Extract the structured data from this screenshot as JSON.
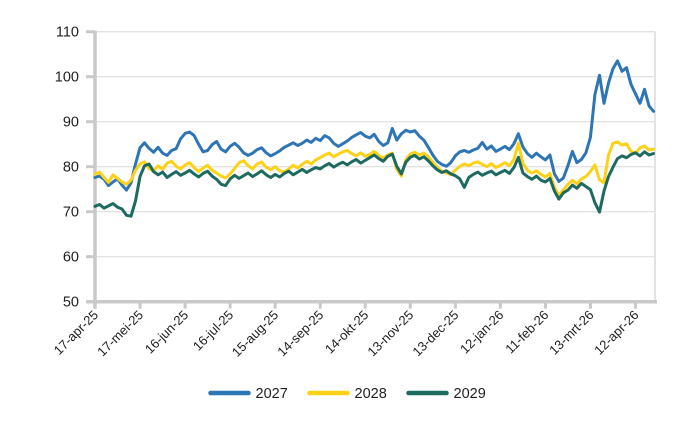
{
  "chart_data": {
    "type": "line",
    "title": "",
    "xlabel": "",
    "ylabel": "",
    "grid": "horizontal",
    "legend_position": "bottom",
    "ylim": [
      50,
      110
    ],
    "y_ticks": [
      50,
      60,
      70,
      80,
      90,
      100,
      110
    ],
    "x_domain_days": [
      0,
      373
    ],
    "x_tick_days": [
      0,
      30,
      60,
      90,
      120,
      150,
      180,
      210,
      240,
      270,
      300,
      330,
      360
    ],
    "x_tick_labels": [
      "17-apr-25",
      "17-mei-25",
      "16-jun-25",
      "16-jul-25",
      "15-aug-25",
      "14-sep-25",
      "14-okt-25",
      "13-nov-25",
      "13-dec-25",
      "12-jan-26",
      "11-feb-26",
      "13-mrt-26",
      "12-apr-26"
    ],
    "sample_step_days": 3,
    "series": [
      {
        "name": "2027",
        "color": "#2e75b6",
        "values": [
          77.6,
          77.9,
          77.2,
          75.8,
          76.6,
          77.3,
          75.9,
          74.8,
          76.4,
          80.6,
          84.2,
          85.3,
          84.1,
          83.2,
          84.3,
          83.0,
          82.5,
          83.6,
          84.0,
          86.2,
          87.4,
          87.7,
          86.9,
          85.0,
          83.3,
          83.6,
          84.9,
          85.6,
          83.9,
          83.3,
          84.5,
          85.2,
          84.3,
          83.1,
          82.5,
          83.0,
          83.8,
          84.2,
          83.1,
          82.4,
          82.9,
          83.5,
          84.3,
          84.8,
          85.3,
          84.7,
          85.2,
          85.9,
          85.4,
          86.3,
          85.8,
          86.9,
          86.4,
          85.2,
          84.5,
          85.1,
          85.7,
          86.5,
          87.1,
          87.6,
          86.8,
          86.4,
          87.2,
          85.6,
          84.7,
          85.3,
          88.5,
          85.9,
          87.3,
          88.1,
          87.7,
          88.0,
          86.8,
          85.9,
          84.3,
          82.6,
          81.2,
          80.5,
          80.1,
          80.9,
          82.4,
          83.3,
          83.6,
          83.2,
          83.7,
          84.1,
          85.4,
          83.9,
          84.6,
          83.4,
          83.9,
          84.5,
          83.8,
          85.1,
          87.3,
          84.4,
          82.9,
          82.1,
          83.0,
          82.2,
          81.5,
          82.6,
          78.4,
          76.7,
          77.5,
          80.2,
          83.4,
          80.9,
          81.6,
          83.1,
          86.5,
          96.0,
          100.3,
          94.1,
          98.6,
          101.8,
          103.5,
          101.2,
          102.0,
          98.3,
          96.2,
          94.1,
          97.2,
          93.5,
          92.3
        ]
      },
      {
        "name": "2028",
        "color": "#fcd116",
        "values": [
          78.3,
          78.8,
          77.6,
          76.5,
          78.2,
          77.4,
          76.6,
          76.1,
          77.0,
          79.2,
          80.6,
          81.1,
          79.6,
          79.0,
          80.2,
          79.4,
          80.8,
          81.2,
          80.1,
          79.5,
          80.4,
          80.9,
          79.8,
          78.9,
          79.7,
          80.3,
          79.2,
          78.6,
          77.9,
          77.5,
          78.4,
          79.6,
          80.9,
          81.3,
          80.2,
          79.5,
          80.6,
          81.0,
          79.9,
          79.3,
          80.0,
          79.1,
          78.8,
          79.5,
          80.3,
          79.7,
          80.5,
          81.2,
          80.6,
          81.5,
          82.0,
          82.6,
          83.0,
          82.2,
          82.8,
          83.3,
          83.6,
          82.9,
          82.4,
          83.1,
          82.3,
          82.7,
          83.4,
          82.5,
          81.9,
          82.6,
          83.0,
          79.4,
          77.9,
          81.5,
          82.8,
          83.2,
          82.6,
          83.0,
          82.2,
          81.0,
          79.8,
          79.0,
          78.6,
          78.3,
          79.2,
          80.1,
          80.6,
          80.2,
          80.8,
          81.1,
          80.5,
          80.0,
          80.7,
          79.8,
          80.3,
          80.9,
          80.2,
          81.6,
          85.2,
          80.7,
          79.2,
          78.6,
          79.1,
          78.3,
          77.7,
          78.5,
          75.4,
          73.6,
          74.9,
          76.1,
          77.0,
          76.2,
          77.3,
          77.8,
          78.9,
          80.4,
          77.1,
          76.4,
          82.6,
          85.2,
          85.5,
          84.8,
          85.1,
          83.4,
          83.0,
          84.2,
          84.6,
          83.7,
          83.9
        ]
      },
      {
        "name": "2029",
        "color": "#1d6a60",
        "values": [
          71.2,
          71.6,
          70.8,
          71.3,
          71.8,
          71.0,
          70.6,
          69.2,
          69.0,
          72.4,
          77.8,
          80.2,
          80.6,
          78.9,
          78.2,
          78.8,
          77.6,
          78.3,
          78.9,
          78.1,
          78.6,
          79.2,
          78.4,
          77.7,
          78.5,
          79.0,
          77.9,
          77.2,
          76.1,
          75.8,
          77.3,
          78.1,
          77.4,
          78.0,
          78.6,
          77.8,
          78.4,
          79.1,
          78.2,
          77.6,
          78.3,
          77.7,
          78.5,
          79.0,
          78.2,
          78.8,
          79.4,
          78.7,
          79.3,
          79.8,
          79.5,
          80.2,
          80.7,
          79.9,
          80.5,
          81.0,
          80.4,
          81.1,
          81.6,
          80.8,
          81.4,
          82.0,
          82.6,
          81.8,
          81.2,
          82.3,
          82.8,
          80.1,
          78.4,
          81.0,
          82.1,
          82.5,
          81.7,
          82.2,
          81.3,
          80.2,
          79.3,
          78.7,
          79.1,
          78.4,
          78.0,
          77.3,
          75.4,
          77.6,
          78.3,
          78.8,
          78.1,
          78.6,
          79.0,
          78.2,
          78.7,
          79.2,
          78.5,
          79.8,
          82.1,
          78.6,
          77.8,
          77.2,
          77.9,
          77.0,
          76.6,
          77.4,
          74.6,
          72.8,
          74.2,
          74.8,
          75.9,
          75.2,
          76.3,
          75.6,
          74.9,
          72.0,
          69.9,
          74.6,
          77.8,
          79.9,
          81.8,
          82.4,
          82.0,
          82.7,
          83.1,
          82.4,
          83.3,
          82.6,
          82.9
        ]
      }
    ]
  },
  "colors": {
    "background": "#ffffff",
    "axis": "#c9c9c9",
    "grid": "#e3e3e3",
    "tick": "#c9c9c9",
    "text": "#212121"
  }
}
